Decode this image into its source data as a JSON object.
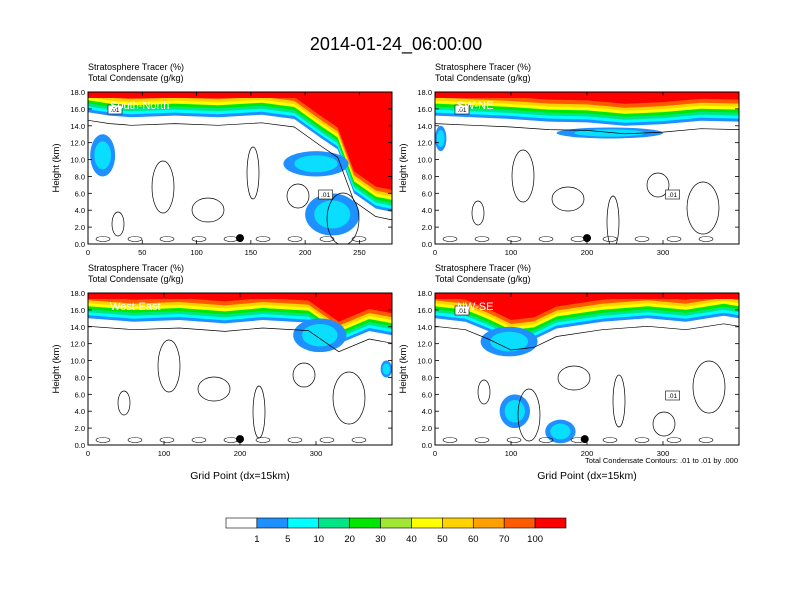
{
  "title": "2014-01-24_06:00:00",
  "colors": {
    "levels": [
      "#ffffff",
      "#1e90ff",
      "#00ffff",
      "#00e687",
      "#00e600",
      "#a0e632",
      "#ffff00",
      "#ffd200",
      "#ffa000",
      "#ff5a00",
      "#ff0000"
    ],
    "contour": "#000000"
  },
  "colorbar": {
    "labels": [
      "1",
      "5",
      "10",
      "20",
      "30",
      "40",
      "50",
      "60",
      "70",
      "100"
    ]
  },
  "contour_note": "Total Condensate Contours: .01 to .01 by .000",
  "chart_data": [
    {
      "type": "heatmap",
      "section": "South-North",
      "title_lines": [
        "Stratosphere Tracer   (%)",
        "Total Condensate   (g/kg)"
      ],
      "ylabel": "Height (km)",
      "xlabel": "",
      "x_ticks": [
        "0",
        "50",
        "100",
        "150",
        "200",
        "250"
      ],
      "x_tick_values": [
        0,
        50,
        100,
        150,
        200,
        250
      ],
      "xlim": [
        0,
        280
      ],
      "y_ticks": [
        "0.0",
        "2.0",
        "4.0",
        "6.0",
        "8.0",
        "10.0",
        "12.0",
        "14.0",
        "16.0",
        "18.0"
      ],
      "ylim": [
        0,
        18
      ],
      "marker_x": 140,
      "contour_labels": [
        ".01",
        ".01"
      ],
      "tropopause": [
        [
          0,
          15.6
        ],
        [
          20,
          15.2
        ],
        [
          40,
          15.0
        ],
        [
          80,
          15.2
        ],
        [
          120,
          15.0
        ],
        [
          160,
          15.3
        ],
        [
          190,
          14.8
        ],
        [
          215,
          12.5
        ],
        [
          230,
          11.2
        ],
        [
          245,
          6.0
        ],
        [
          265,
          4.2
        ],
        [
          280,
          3.8
        ]
      ],
      "blue_blobs": [
        {
          "x": [
            2,
            25
          ],
          "y": [
            8,
            13
          ]
        },
        {
          "x": [
            180,
            240
          ],
          "y": [
            8,
            11
          ]
        },
        {
          "x": [
            200,
            250
          ],
          "y": [
            1,
            6
          ]
        }
      ]
    },
    {
      "type": "heatmap",
      "section": "SW-NE",
      "title_lines": [
        "Stratosphere Tracer   (%)",
        "Total Condensate   (g/kg)"
      ],
      "ylabel": "Height (km)",
      "xlabel": "",
      "x_ticks": [
        "0",
        "100",
        "200",
        "300"
      ],
      "x_tick_values": [
        0,
        100,
        200,
        300
      ],
      "xlim": [
        0,
        400
      ],
      "y_ticks": [
        "0.0",
        "2.0",
        "4.0",
        "6.0",
        "8.0",
        "10.0",
        "12.0",
        "14.0",
        "16.0",
        "18.0"
      ],
      "ylim": [
        0,
        18
      ],
      "marker_x": 200,
      "contour_labels": [
        ".01",
        ".01"
      ],
      "tropopause": [
        [
          0,
          15.2
        ],
        [
          50,
          15.0
        ],
        [
          100,
          14.8
        ],
        [
          150,
          14.5
        ],
        [
          200,
          14.4
        ],
        [
          250,
          14.0
        ],
        [
          300,
          14.2
        ],
        [
          350,
          14.6
        ],
        [
          400,
          14.5
        ]
      ],
      "blue_blobs": [
        {
          "x": [
            0,
            15
          ],
          "y": [
            11,
            14
          ]
        },
        {
          "x": [
            160,
            300
          ],
          "y": [
            12.5,
            13.8
          ]
        }
      ]
    },
    {
      "type": "heatmap",
      "section": "West-East",
      "title_lines": [
        "Stratosphere Tracer   (%)",
        "Total Condensate   (g/kg)"
      ],
      "ylabel": "Height (km)",
      "xlabel": "Grid Point (dx=15km)",
      "x_ticks": [
        "0",
        "100",
        "200",
        "300"
      ],
      "x_tick_values": [
        0,
        100,
        200,
        300
      ],
      "xlim": [
        0,
        400
      ],
      "y_ticks": [
        "0.0",
        "2.0",
        "4.0",
        "6.0",
        "8.0",
        "10.0",
        "12.0",
        "14.0",
        "16.0",
        "18.0"
      ],
      "ylim": [
        0,
        18
      ],
      "marker_x": 200,
      "contour_labels": [],
      "tropopause": [
        [
          0,
          15.0
        ],
        [
          60,
          14.6
        ],
        [
          120,
          14.8
        ],
        [
          180,
          14.4
        ],
        [
          230,
          14.8
        ],
        [
          290,
          14.5
        ],
        [
          330,
          12.0
        ],
        [
          370,
          13.5
        ],
        [
          400,
          13.0
        ]
      ],
      "blue_blobs": [
        {
          "x": [
            270,
            340
          ],
          "y": [
            11,
            15
          ]
        },
        {
          "x": [
            385,
            400
          ],
          "y": [
            8,
            10
          ]
        }
      ]
    },
    {
      "type": "heatmap",
      "section": "NW-SE",
      "title_lines": [
        "Stratosphere Tracer   (%)",
        "Total Condensate   (g/kg)"
      ],
      "ylabel": "Height (km)",
      "xlabel": "Grid Point (dx=15km)",
      "x_ticks": [
        "0",
        "100",
        "200",
        "300"
      ],
      "x_tick_values": [
        0,
        100,
        200,
        300
      ],
      "xlim": [
        0,
        400
      ],
      "y_ticks": [
        "0.0",
        "2.0",
        "4.0",
        "6.0",
        "8.0",
        "10.0",
        "12.0",
        "14.0",
        "16.0",
        "18.0"
      ],
      "ylim": [
        0,
        18
      ],
      "marker_x": 197,
      "contour_labels": [
        ".01",
        ".01"
      ],
      "tropopause": [
        [
          0,
          15.0
        ],
        [
          40,
          14.6
        ],
        [
          70,
          13.5
        ],
        [
          100,
          12.2
        ],
        [
          130,
          12.5
        ],
        [
          160,
          13.8
        ],
        [
          220,
          14.6
        ],
        [
          280,
          15.0
        ],
        [
          330,
          14.6
        ],
        [
          380,
          15.3
        ],
        [
          400,
          15.0
        ]
      ],
      "blue_blobs": [
        {
          "x": [
            60,
            135
          ],
          "y": [
            10.5,
            14
          ]
        },
        {
          "x": [
            85,
            125
          ],
          "y": [
            2,
            6
          ]
        },
        {
          "x": [
            145,
            185
          ],
          "y": [
            0.2,
            3
          ]
        }
      ]
    }
  ]
}
